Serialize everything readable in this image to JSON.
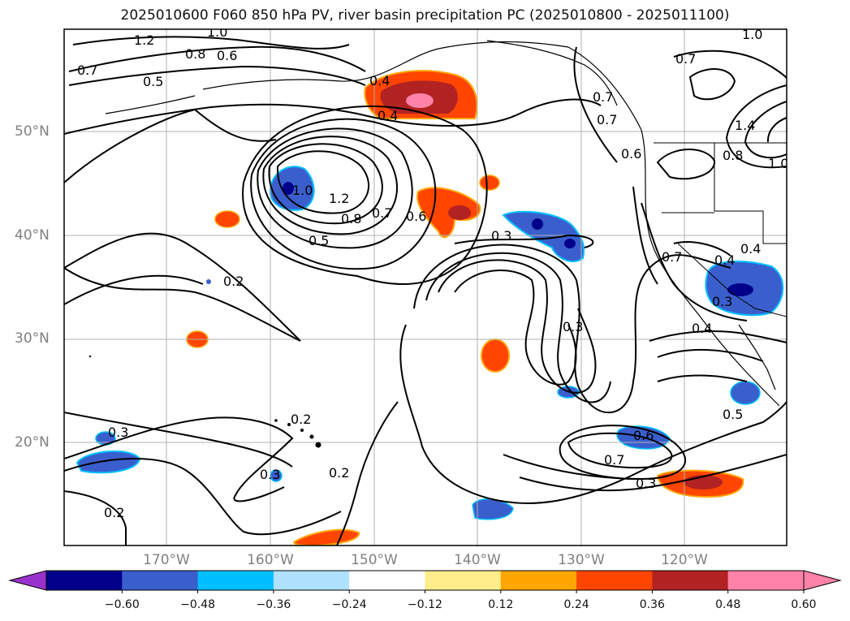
{
  "title": "2025010600 F060 850 hPa PV, river basin precipitation PC (2025010800 - 2025011100)",
  "lat_labels": [
    "50°N",
    "40°N",
    "30°N",
    "20°N"
  ],
  "lon_labels": [
    "170°W",
    "160°W",
    "150°W",
    "140°W",
    "130°W",
    "120°W"
  ],
  "contour_labels": [
    "1.2",
    "1.0",
    "0.8",
    "0.6",
    "0.7",
    "0.5",
    "0.4",
    "0.4",
    "1.0",
    "1.2",
    "0.8",
    "0.7",
    "0.6",
    "0.5",
    "0.3",
    "0.2",
    "0.3",
    "0.2",
    "0.3",
    "0.2",
    "0.2",
    "0.3",
    "0.7",
    "0.6",
    "0.3",
    "0.7",
    "0.3",
    "0.5",
    "0.4",
    "0.4",
    "0.4",
    "0.7",
    "0.6",
    "1.0",
    "0.7",
    "1.4",
    "0.8",
    "1.0",
    "0.7"
  ],
  "colorbar": {
    "ticks": [
      "−0.60",
      "−0.48",
      "−0.36",
      "−0.24",
      "−0.12",
      "0.12",
      "0.24",
      "0.36",
      "0.48",
      "0.60"
    ],
    "colors": {
      "under": "#9932cc",
      "bins": [
        "#00008b",
        "#3a5fcd",
        "#00bfff",
        "#b0e2ff",
        "#ffffff",
        "#ffec8b",
        "#ffa500",
        "#ff4500",
        "#b22222",
        "#ff83a8"
      ],
      "over": "#ff83a8"
    }
  }
}
